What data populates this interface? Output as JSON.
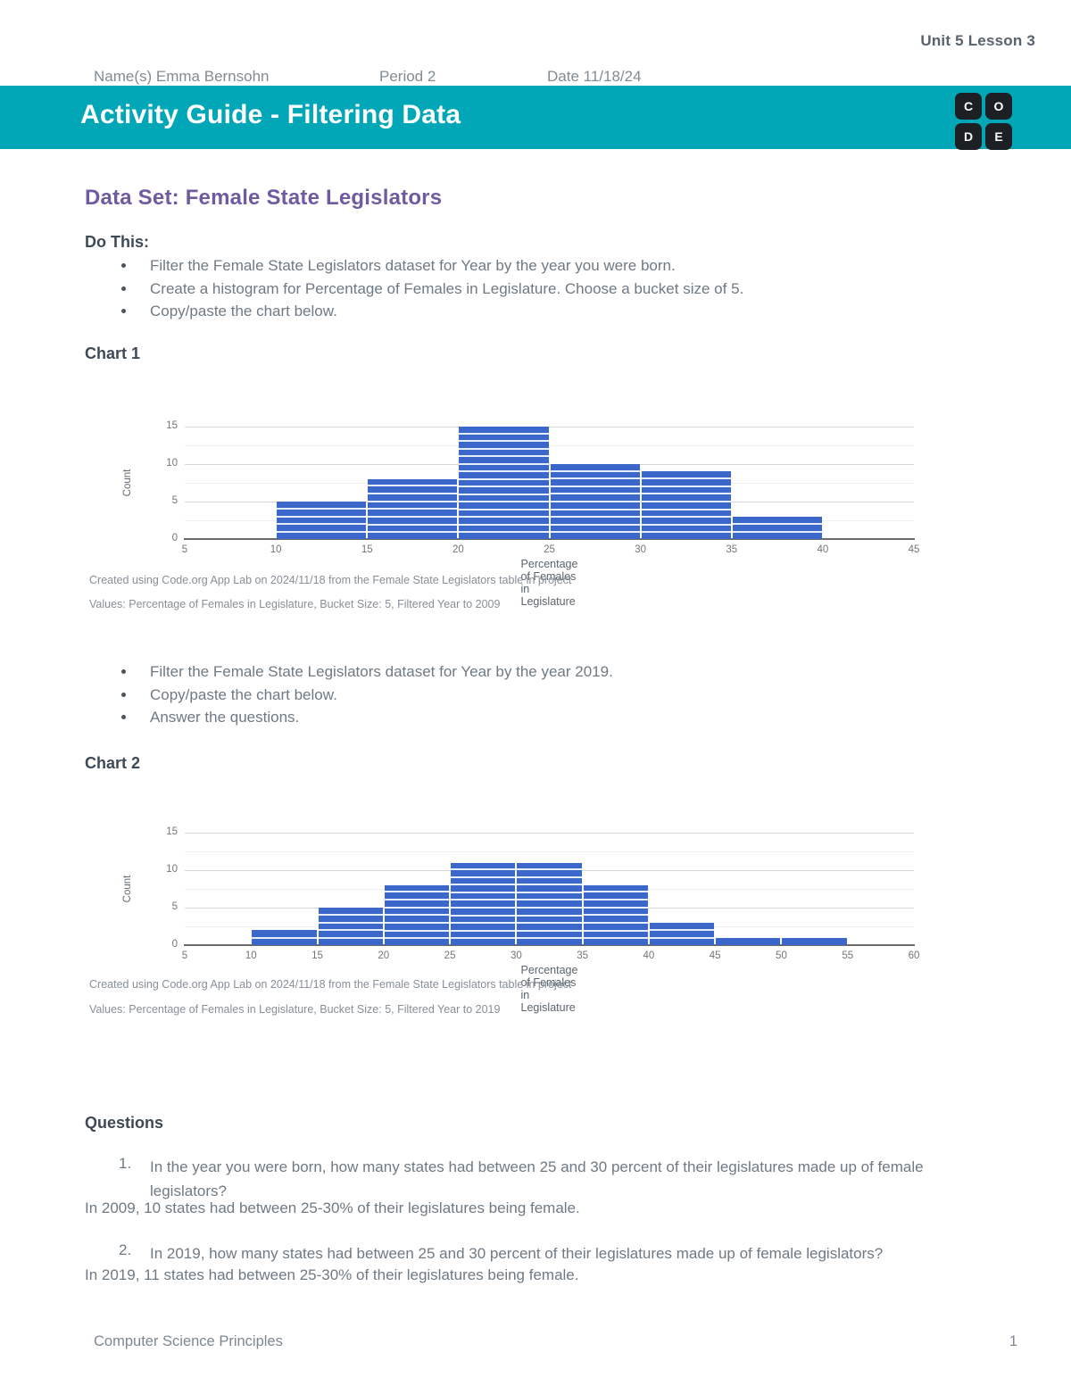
{
  "page": {
    "unit_label": "Unit 5 Lesson 3",
    "meta": {
      "name": "Name(s) Emma Bernsohn",
      "period": "Period 2",
      "date": "Date 11/18/24"
    },
    "banner": {
      "title": "Activity Guide - Filtering Data",
      "logo_letters": [
        "C",
        "O",
        "D",
        "E"
      ]
    },
    "dataset_heading": "Data Set: Female State Legislators",
    "do_this": {
      "label": "Do This:",
      "bullets": [
        "Filter the Female State Legislators dataset for Year by the year you were born.",
        "Create a histogram for Percentage of Females in Legislature. Choose a bucket size of 5.",
        "Copy/paste the chart below."
      ]
    },
    "chart1_label": "Chart 1",
    "second_bullets": [
      "Filter the Female State Legislators dataset for Year by the year 2019.",
      "Copy/paste the chart below.",
      "Answer the questions."
    ],
    "chart2_label": "Chart 2",
    "questions": {
      "label": "Questions",
      "items": [
        {
          "number": "1.",
          "question": "In the year you were born, how many states had between 25 and 30 percent of their legislatures made up of female legislators?",
          "answer": "In 2009, 10 states had between 25-30% of their legislatures being female."
        },
        {
          "number": "2.",
          "question": "In 2019, how many states had between 25 and 30 percent of their legislatures made up of female legislators?",
          "answer": "In 2019, 11 states had between 25-30% of their legislatures being female."
        }
      ]
    },
    "footer": {
      "left": "Computer Science Principles",
      "page_number": "1"
    }
  },
  "chart_data": [
    {
      "type": "bar",
      "subtype": "histogram",
      "xlabel": "Percentage of Females in Legislature",
      "ylabel": "Count",
      "bucket_size": 5,
      "xlim": [
        5,
        45
      ],
      "ylim": [
        0,
        15
      ],
      "x_tick_step": 5,
      "y_tick_step": 5,
      "minor_grid_step": 2.5,
      "categories": [
        "10-15",
        "15-20",
        "20-25",
        "25-30",
        "30-35",
        "35-40"
      ],
      "bar_starts": [
        10,
        15,
        20,
        25,
        30,
        35
      ],
      "values": [
        5,
        8,
        15,
        10,
        9,
        3
      ],
      "bar_color": "#3b67cb",
      "captions": [
        "Created using Code.org App Lab on 2024/11/18 from the Female State Legislators table in project",
        "Values: Percentage of Females in Legislature, Bucket Size: 5, Filtered Year to 2009"
      ]
    },
    {
      "type": "bar",
      "subtype": "histogram",
      "xlabel": "Percentage of Females in Legislature",
      "ylabel": "Count",
      "bucket_size": 5,
      "xlim": [
        5,
        60
      ],
      "ylim": [
        0,
        15
      ],
      "x_tick_step": 5,
      "y_tick_step": 5,
      "minor_grid_step": 2.5,
      "categories": [
        "10-15",
        "15-20",
        "20-25",
        "25-30",
        "30-35",
        "35-40",
        "40-45",
        "45-50",
        "50-55"
      ],
      "bar_starts": [
        10,
        15,
        20,
        25,
        30,
        35,
        40,
        45,
        50
      ],
      "values": [
        2,
        5,
        8,
        11,
        11,
        8,
        3,
        1,
        1
      ],
      "bar_color": "#3b67cb",
      "captions": [
        "Created using Code.org App Lab on 2024/11/18 from the Female State Legislators table in project",
        "Values: Percentage of Females in Legislature, Bucket Size: 5, Filtered Year to 2019"
      ]
    }
  ],
  "colors": {
    "banner_teal": "#01a7b7",
    "heading_purple": "#6f5b9f",
    "bar_blue": "#3b67cb",
    "heading_dark": "#3e4a55",
    "body_text": "#6e7a84",
    "muted_text": "#878f98",
    "logo_black": "#1c2025"
  }
}
